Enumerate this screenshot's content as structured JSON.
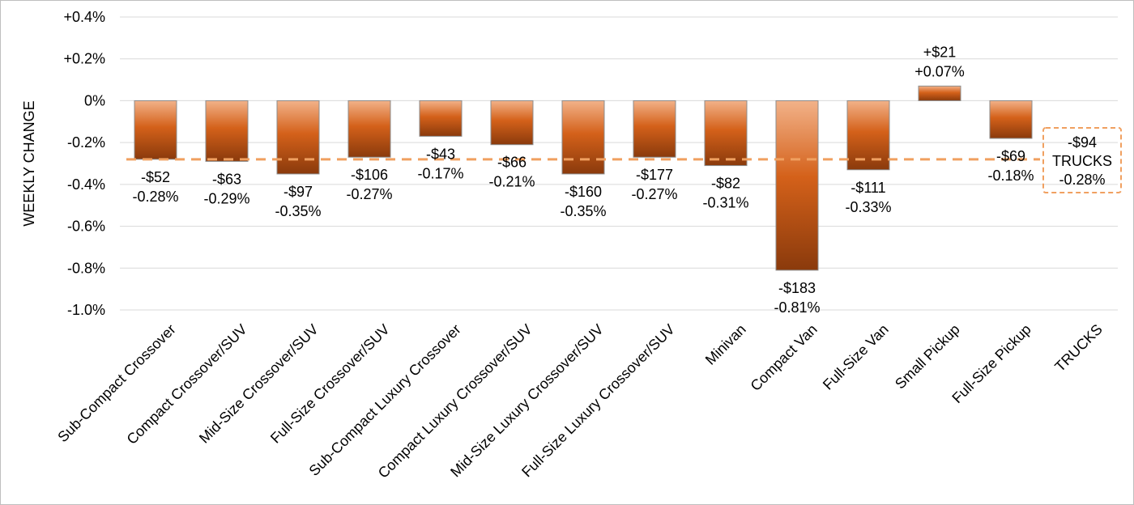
{
  "chart_data": {
    "type": "bar",
    "ylabel": "WEEKLY CHANGE",
    "ylim": [
      -1.0,
      0.4
    ],
    "yticks": [
      0.4,
      0.2,
      0,
      -0.2,
      -0.4,
      -0.6,
      -0.8,
      -1.0
    ],
    "ytick_labels": [
      "+0.4%",
      "+0.2%",
      "0%",
      "-0.2%",
      "-0.4%",
      "-0.6%",
      "-0.8%",
      "-1.0%"
    ],
    "grid": true,
    "colors": {
      "bar_top": "#f2b289",
      "bar_mid": "#d4611a",
      "bar_bottom": "#8a3a0c",
      "average_line": "#f0a060"
    },
    "categories": [
      "Sub-Compact Crossover",
      "Compact Crossover/SUV",
      "Mid-Size Crossover/SUV",
      "Full-Size Crossover/SUV",
      "Sub-Compact Luxury Crossover",
      "Compact Luxury Crossover/SUV",
      "Mid-Size Luxury Crossover/SUV",
      "Full-Size Luxury Crossover/SUV",
      "Minivan",
      "Compact Van",
      "Full-Size Van",
      "Small Pickup",
      "Full-Size Pickup",
      "TRUCKS"
    ],
    "values": [
      -0.28,
      -0.29,
      -0.35,
      -0.27,
      -0.17,
      -0.21,
      -0.35,
      -0.27,
      -0.31,
      -0.81,
      -0.33,
      0.07,
      -0.18,
      null
    ],
    "dollar_labels": [
      "-$52",
      "-$63",
      "-$97",
      "-$106",
      "-$43",
      "-$66",
      "-$160",
      "-$177",
      "-$82",
      "-$183",
      "-$111",
      "+$21",
      "-$69",
      "-$94"
    ],
    "percent_labels": [
      "-0.28%",
      "-0.29%",
      "-0.35%",
      "-0.27%",
      "-0.17%",
      "-0.21%",
      "-0.35%",
      "-0.27%",
      "-0.31%",
      "-0.81%",
      "-0.33%",
      "+0.07%",
      "-0.18%",
      "-0.28%"
    ],
    "average": {
      "value": -0.28,
      "dollar_label": "-$94",
      "name": "TRUCKS",
      "percent_label": "-0.28%"
    }
  }
}
